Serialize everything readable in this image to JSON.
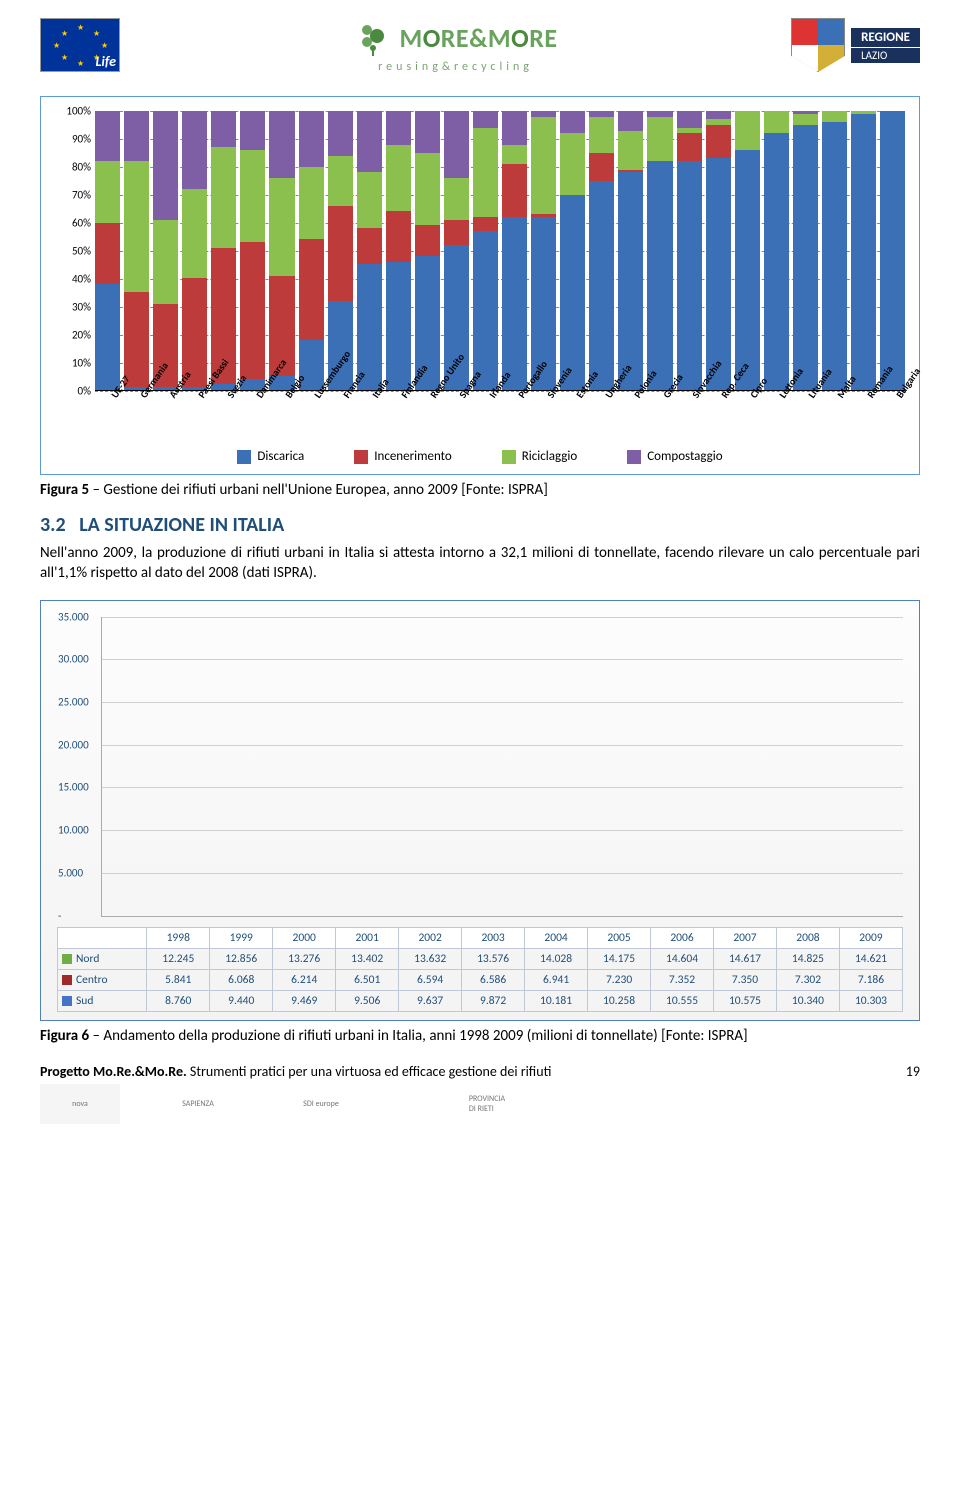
{
  "header": {
    "brand_name_html": "MORE&MORE",
    "brand_sub": "reusing&recycling",
    "regione": "REGIONE",
    "lazio": "LAZIO"
  },
  "chart1": {
    "type": "stacked-bar-100pct",
    "ylim": [
      0,
      100
    ],
    "ytick_step": 10,
    "yticks": [
      "0%",
      "10%",
      "20%",
      "30%",
      "40%",
      "50%",
      "60%",
      "70%",
      "80%",
      "90%",
      "100%"
    ],
    "series": [
      {
        "name": "Discarica",
        "color": "#3b6fb6"
      },
      {
        "name": "Incenerimento",
        "color": "#bd3b3b"
      },
      {
        "name": "Riciclaggio",
        "color": "#8bbf4e"
      },
      {
        "name": "Compostaggio",
        "color": "#7e5fa6"
      }
    ],
    "categories": [
      "UE-27",
      "Germania",
      "Austria",
      "Paesi Bassi",
      "Svezia",
      "Danimarca",
      "Belgio",
      "Lussemburgo",
      "Francia",
      "Italia",
      "Finlandia",
      "Regno Unito",
      "Spagna",
      "Irlanda",
      "Portogallo",
      "Slovenia",
      "Estonia",
      "Ungheria",
      "Polonia",
      "Grecia",
      "Slovacchia",
      "Rep. Ceca",
      "Cipro",
      "Lettonia",
      "Lituania",
      "Malta",
      "Romania",
      "Bulgaria"
    ],
    "data": [
      [
        38,
        22,
        22,
        18
      ],
      [
        1,
        34,
        47,
        18
      ],
      [
        1,
        30,
        30,
        39
      ],
      [
        1,
        39,
        32,
        28
      ],
      [
        2,
        49,
        36,
        13
      ],
      [
        4,
        49,
        33,
        14
      ],
      [
        5,
        36,
        35,
        24
      ],
      [
        18,
        36,
        26,
        20
      ],
      [
        32,
        34,
        18,
        16
      ],
      [
        45,
        13,
        20,
        22
      ],
      [
        46,
        18,
        24,
        12
      ],
      [
        48,
        11,
        26,
        15
      ],
      [
        52,
        9,
        15,
        24
      ],
      [
        57,
        5,
        32,
        6
      ],
      [
        62,
        19,
        7,
        12
      ],
      [
        62,
        1,
        35,
        2
      ],
      [
        70,
        0,
        22,
        8
      ],
      [
        75,
        10,
        13,
        2
      ],
      [
        78,
        1,
        14,
        7
      ],
      [
        82,
        0,
        16,
        2
      ],
      [
        82,
        10,
        2,
        6
      ],
      [
        83,
        12,
        2,
        3
      ],
      [
        86,
        0,
        14,
        0
      ],
      [
        92,
        0,
        8,
        0
      ],
      [
        95,
        0,
        4,
        1
      ],
      [
        96,
        0,
        4,
        0
      ],
      [
        99,
        0,
        1,
        0
      ],
      [
        100,
        0,
        0,
        0
      ]
    ],
    "background_color": "#ffffff",
    "border_color": "#5b9bd5",
    "grid_dash_color": "#808080"
  },
  "caption1": {
    "prefix": "Figura 5",
    "text": " – Gestione dei rifiuti urbani nell'Unione Europea, anno 2009 [Fonte: ISPRA]"
  },
  "section": {
    "num": "3.2",
    "title": "LA SITUAZIONE IN ITALIA"
  },
  "paragraph": "Nell'anno 2009, la produzione di rifiuti urbani in Italia si attesta intorno a 32,1 milioni di tonnellate, facendo rilevare un calo percentuale pari all'1,1% rispetto al dato del 2008 (dati ISPRA).",
  "chart2": {
    "type": "stacked-bar",
    "ylim": [
      0,
      35000
    ],
    "ytick_step": 5000,
    "yticks": [
      "-",
      "5.000",
      "10.000",
      "15.000",
      "20.000",
      "25.000",
      "30.000",
      "35.000"
    ],
    "series": [
      {
        "name": "Nord",
        "color": "#70ad47"
      },
      {
        "name": "Centro",
        "color": "#9e2a2a"
      },
      {
        "name": "Sud",
        "color": "#4472c4"
      }
    ],
    "years": [
      "1998",
      "1999",
      "2000",
      "2001",
      "2002",
      "2003",
      "2004",
      "2005",
      "2006",
      "2007",
      "2008",
      "2009"
    ],
    "rows": {
      "Nord": [
        "12.245",
        "12.856",
        "13.276",
        "13.402",
        "13.632",
        "13.576",
        "14.028",
        "14.175",
        "14.604",
        "14.617",
        "14.825",
        "14.621"
      ],
      "Centro": [
        "5.841",
        "6.068",
        "6.214",
        "6.501",
        "6.594",
        "6.586",
        "6.941",
        "7.230",
        "7.352",
        "7.350",
        "7.302",
        "7.186"
      ],
      "Sud": [
        "8.760",
        "9.440",
        "9.469",
        "9.506",
        "9.637",
        "9.872",
        "10.181",
        "10.258",
        "10.555",
        "10.575",
        "10.340",
        "10.303"
      ]
    },
    "data_numeric": {
      "Nord": [
        12245,
        12856,
        13276,
        13402,
        13632,
        13576,
        14028,
        14175,
        14604,
        14617,
        14825,
        14621
      ],
      "Centro": [
        5841,
        6068,
        6214,
        6501,
        6594,
        6586,
        6941,
        7230,
        7352,
        7350,
        7302,
        7186
      ],
      "Sud": [
        8760,
        9440,
        9469,
        9506,
        9637,
        9872,
        10181,
        10258,
        10555,
        10575,
        10340,
        10303
      ]
    },
    "border_color": "#4f81bd",
    "grid_color": "#d0d0d0",
    "bg_gradient": [
      "#fdfdfd",
      "#f3f3f3"
    ]
  },
  "caption2": {
    "prefix": "Figura 6",
    "text": " – Andamento della produzione di rifiuti urbani in Italia, anni 1998 2009 (milioni di tonnellate) [Fonte: ISPRA]"
  },
  "footer": {
    "project": "Progetto Mo.Re.&Mo.Re.",
    "tagline": " Strumenti pratici per una virtuosa ed efficace gestione dei rifiuti",
    "page": "19",
    "partners": [
      "nova",
      "SAPIENZA",
      "SDI europe",
      "",
      "PROVINCIA DI RIETI"
    ]
  }
}
